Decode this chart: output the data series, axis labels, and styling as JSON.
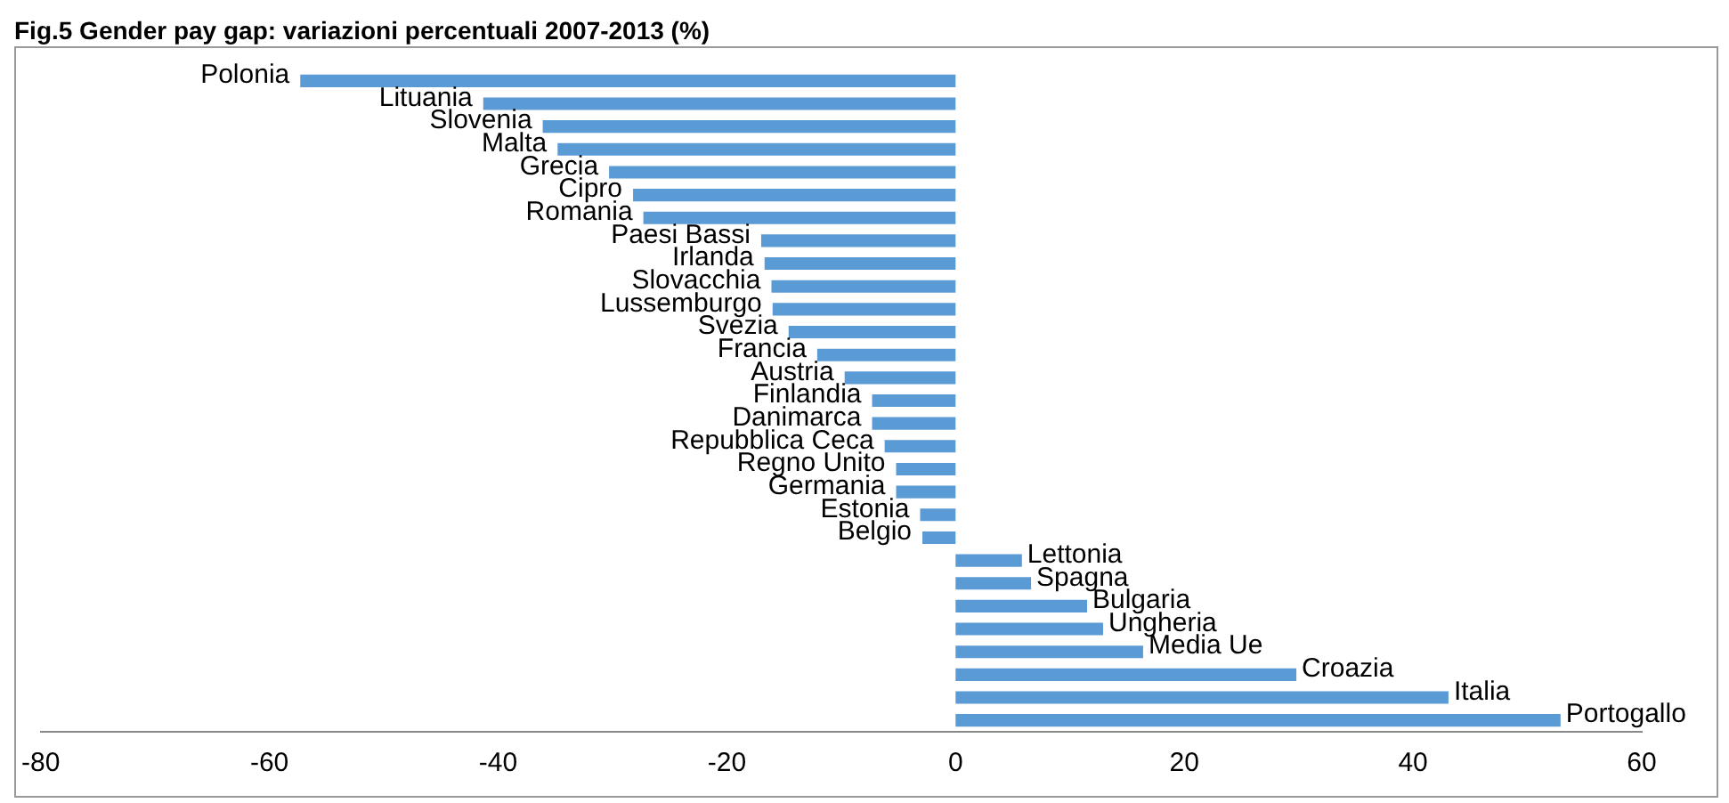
{
  "chart_data": {
    "type": "bar",
    "orientation": "horizontal",
    "title": "Fig.5 Gender pay gap: variazioni percentuali 2007-2013 (%)",
    "categories": [
      "Polonia",
      "Lituania",
      "Slovenia",
      "Malta",
      "Grecia",
      "Cipro",
      "Romania",
      "Paesi Bassi",
      "Irlanda",
      "Slovacchia",
      "Lussemburgo",
      "Svezia",
      "Francia",
      "Austria",
      "Finlandia",
      "Danimarca",
      "Repubblica Ceca",
      "Regno Unito",
      "Germania",
      "Estonia",
      "Belgio",
      "Lettonia",
      "Spagna",
      "Bulgaria",
      "Ungheria",
      "Media Ue",
      "Croazia",
      "Italia",
      "Portogallo"
    ],
    "values": [
      -57.3,
      -41.3,
      -36.1,
      -34.8,
      -30.3,
      -28.2,
      -27.3,
      -17.0,
      -16.7,
      -16.1,
      -16.0,
      -14.6,
      -12.1,
      -9.7,
      -7.3,
      -7.3,
      -6.2,
      -5.2,
      -5.2,
      -3.1,
      -2.9,
      5.8,
      6.6,
      11.5,
      12.9,
      16.4,
      29.8,
      43.1,
      52.9
    ],
    "color": "#5b9bd5",
    "xlim": [
      -80,
      60
    ],
    "xticks": [
      -80,
      -60,
      -40,
      -20,
      0,
      20,
      40,
      60
    ],
    "grid": false,
    "legend": false
  }
}
